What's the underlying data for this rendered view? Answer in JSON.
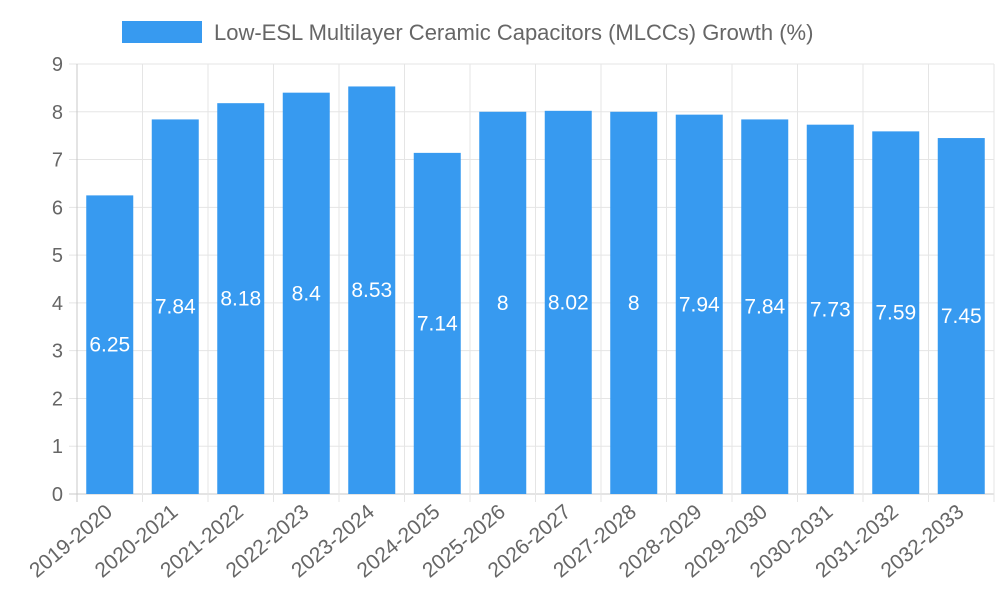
{
  "chart_data": {
    "type": "bar",
    "title": "",
    "xlabel": "",
    "ylabel": "",
    "ylim": [
      0,
      9
    ],
    "y_ticks": [
      "0",
      "1",
      "2",
      "3",
      "4",
      "5",
      "6",
      "7",
      "8",
      "9"
    ],
    "grid": true,
    "legend_position": "top-center",
    "categories": [
      "2019-2020",
      "2020-2021",
      "2021-2022",
      "2022-2023",
      "2023-2024",
      "2024-2025",
      "2025-2026",
      "2026-2027",
      "2027-2028",
      "2028-2029",
      "2029-2030",
      "2030-2031",
      "2031-2032",
      "2032-2033"
    ],
    "series": [
      {
        "name": "Low-ESL Multilayer Ceramic Capacitors (MLCCs) Growth (%)",
        "color": "#379af0",
        "values": [
          6.25,
          7.84,
          8.18,
          8.4,
          8.53,
          7.14,
          8,
          8.02,
          8,
          7.94,
          7.84,
          7.73,
          7.59,
          7.45
        ],
        "labels": [
          "6.25",
          "7.84",
          "8.18",
          "8.4",
          "8.53",
          "7.14",
          "8",
          "8.02",
          "8",
          "7.94",
          "7.84",
          "7.73",
          "7.59",
          "7.45"
        ]
      }
    ]
  }
}
